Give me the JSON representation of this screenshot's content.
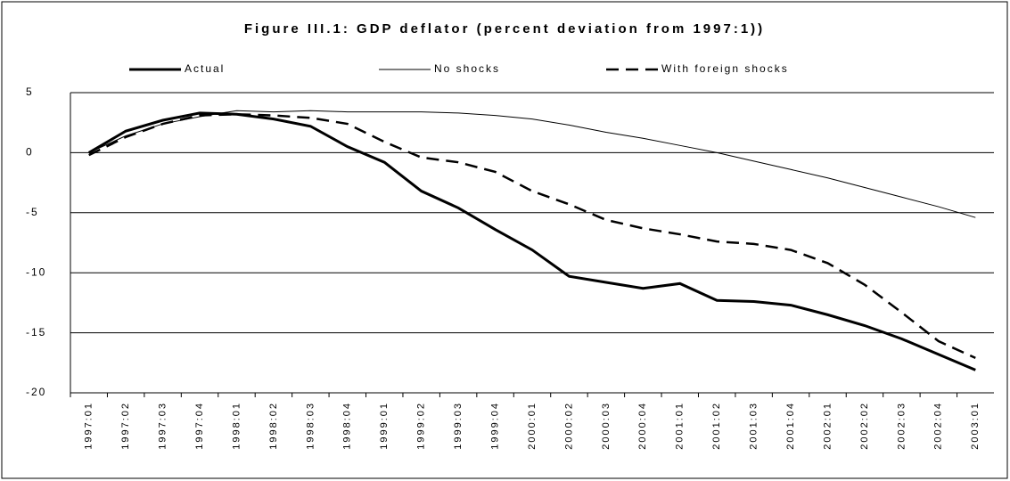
{
  "chart_data": {
    "type": "line",
    "title": "Figure III.1: GDP deflator (percent deviation from 1997:1))",
    "categories": [
      "1997:01",
      "1997:02",
      "1997:03",
      "1997:04",
      "1998:01",
      "1998:02",
      "1998:03",
      "1998:04",
      "1999:01",
      "1999:02",
      "1999:03",
      "1999:04",
      "2000:01",
      "2000:02",
      "2000:03",
      "2000:04",
      "2001:01",
      "2001:02",
      "2001:03",
      "2001:04",
      "2002:01",
      "2002:02",
      "2002:03",
      "2002:04",
      "2003:01"
    ],
    "series": [
      {
        "name": "Actual",
        "color": "#000000",
        "values": [
          0,
          1.8,
          2.7,
          3.3,
          3.2,
          2.8,
          2.2,
          0.5,
          -0.8,
          -3.2,
          -4.6,
          -6.4,
          -8.1,
          -10.3,
          -10.8,
          -11.3,
          -10.9,
          -12.3,
          -12.4,
          -12.7,
          -13.5,
          -14.4,
          -15.5,
          -16.8,
          -18.1
        ]
      },
      {
        "name": "No shocks",
        "color": "#000000",
        "values": [
          0,
          1.4,
          2.4,
          3.0,
          3.5,
          3.4,
          3.5,
          3.4,
          3.4,
          3.4,
          3.3,
          3.1,
          2.8,
          2.3,
          1.7,
          1.2,
          0.6,
          0.0,
          -0.7,
          -1.4,
          -2.1,
          -2.9,
          -3.7,
          -4.5,
          -5.4
        ]
      },
      {
        "name": "With foreign shocks",
        "color": "#000000",
        "values": [
          -0.2,
          1.3,
          2.4,
          3.1,
          3.2,
          3.1,
          2.9,
          2.4,
          0.9,
          -0.4,
          -0.8,
          -1.6,
          -3.2,
          -4.3,
          -5.6,
          -6.3,
          -6.8,
          -7.4,
          -7.6,
          -8.1,
          -9.2,
          -11.0,
          -13.3,
          -15.7,
          -17.1
        ]
      }
    ],
    "ylim": [
      -20,
      5
    ],
    "yticks": [
      -20,
      -15,
      -10,
      -5,
      0,
      5
    ],
    "grid": true
  }
}
